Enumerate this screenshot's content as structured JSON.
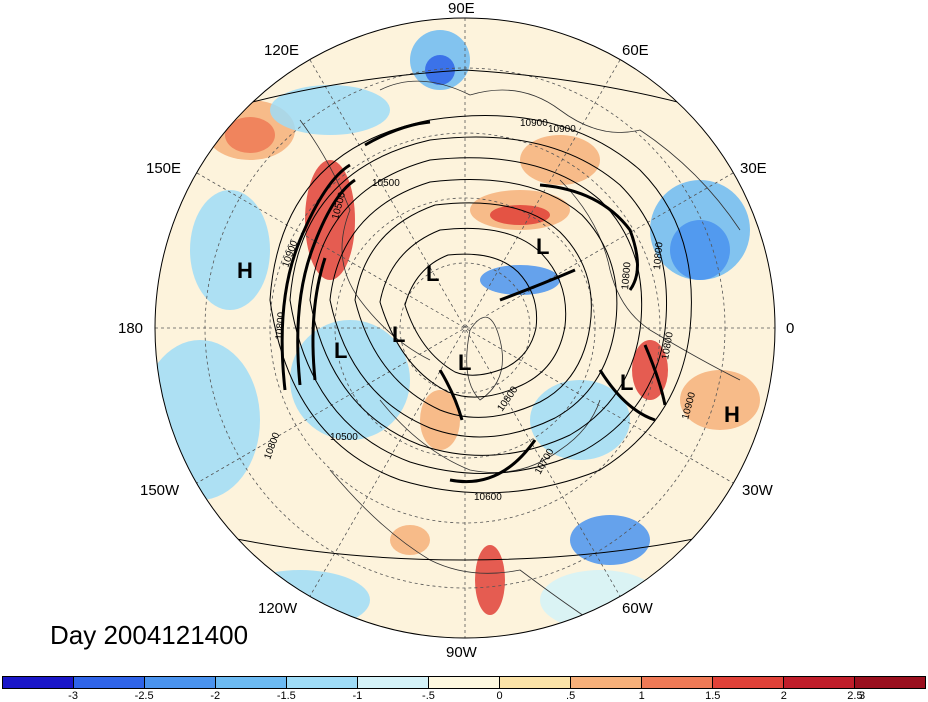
{
  "title": "Day 2004121400",
  "longitude_labels": {
    "e90": "90E",
    "e120": "120E",
    "e60": "60E",
    "e150": "150E",
    "e30": "30E",
    "e180": "180",
    "zero": "0",
    "w150": "150W",
    "w30": "30W",
    "w120": "120W",
    "w60": "60W",
    "w90": "90W"
  },
  "pressure_systems": [
    {
      "type": "H",
      "label": "H"
    },
    {
      "type": "H",
      "label": "H"
    },
    {
      "type": "L",
      "label": "L"
    },
    {
      "type": "L",
      "label": "L"
    },
    {
      "type": "L",
      "label": "L"
    },
    {
      "type": "L",
      "label": "L"
    },
    {
      "type": "L",
      "label": "L"
    },
    {
      "type": "L",
      "label": "L"
    }
  ],
  "contour_labels": [
    "10900",
    "10500",
    "10900",
    "10500",
    "10800",
    "10800",
    "10500",
    "10800",
    "10600",
    "10700",
    "10800",
    "10900",
    "10900",
    "10800",
    "10800"
  ],
  "colorbar": {
    "colors": [
      "#1a16c8",
      "#2f64e8",
      "#4a93ee",
      "#6cbaf2",
      "#9fdcf7",
      "#d4f2f8",
      "#fdf8e0",
      "#fbe3a8",
      "#f6b07a",
      "#ef7a56",
      "#e04138",
      "#c01d2a",
      "#9a0f1e"
    ],
    "ticks": [
      "-3",
      "-2.5",
      "-2",
      "-1.5",
      "-1",
      "-.5",
      "0",
      ".5",
      "1",
      "1.5",
      "2",
      "2.5",
      "3"
    ]
  }
}
